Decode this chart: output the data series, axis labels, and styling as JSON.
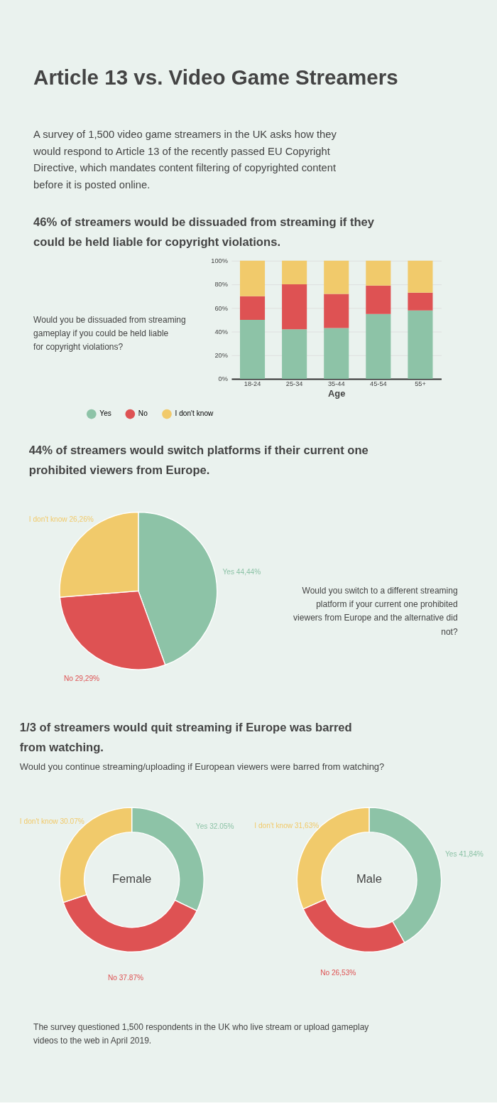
{
  "chart_data": [
    {
      "type": "other",
      "title": "Article 13 vs. Video Game Streamers",
      "subtitle": "A survey of 1,500 video game streamers in the UK asks how they would respond to Article 13 of the recently passed EU Copyright Directive, which mandates content filtering of copyrighted content before it is posted online."
    },
    {
      "type": "bar",
      "title": "46% of streamers would be dissuaded from streaming if they could be held liable for copyright violations.",
      "subtitle": "Would you be dissuaded from streaming gameplay if you could be held liable for copyright violations?",
      "xlabel": "Age",
      "categories": [
        "18-24",
        "25-34",
        "35-44",
        "45-54",
        "55+"
      ],
      "stacked": true,
      "ylim": [
        0,
        100
      ],
      "yticks": [
        {
          "value": 0,
          "label": "0%"
        },
        {
          "value": 20,
          "label": "20%"
        },
        {
          "value": 40,
          "label": "40%"
        },
        {
          "value": 60,
          "label": "60%"
        },
        {
          "value": 80,
          "label": "80%"
        },
        {
          "value": 100,
          "label": "100%"
        }
      ],
      "grid": "y",
      "legend": "bottom",
      "series": [
        {
          "name": "Yes",
          "color": "#8dc3a7",
          "values": [
            50,
            42,
            43,
            55,
            58
          ]
        },
        {
          "name": "No",
          "color": "#de5253",
          "values": [
            20,
            38,
            29,
            24,
            15
          ]
        },
        {
          "name": "I don't know",
          "color": "#f1ca6b",
          "values": [
            30,
            20,
            28,
            21,
            27
          ]
        }
      ]
    },
    {
      "type": "pie",
      "title": "44% of streamers would switch platforms if their current one prohibited viewers from Europe.",
      "subtitle": "Would you switch to a different streaming platform if your current one prohibited viewers from Europe and the alternative did not?",
      "categories": [
        "Yes",
        "No",
        "I don't know"
      ],
      "values": [
        44.44,
        29.29,
        26.26
      ],
      "value_labels": [
        "44,44%",
        "29,29%",
        "26,26%"
      ],
      "colors": [
        "#8dc3a7",
        "#de5253",
        "#f1ca6b"
      ]
    },
    {
      "type": "donut",
      "title": "1/3 of streamers would quit streaming if Europe was barred from watching.",
      "subtitle": "Would you continue streaming/uploading if European viewers were barred from watching?",
      "annotations": [
        "Female"
      ],
      "categories": [
        "Yes",
        "No",
        "I don't know"
      ],
      "values": [
        32.05,
        37.87,
        30.07
      ],
      "value_labels": [
        "32.05%",
        "37.87%",
        "30.07%"
      ],
      "colors": [
        "#8dc3a7",
        "#de5253",
        "#f1ca6b"
      ]
    },
    {
      "type": "donut",
      "annotations": [
        "Male"
      ],
      "categories": [
        "Yes",
        "No",
        "I don't know"
      ],
      "values": [
        41.84,
        26.53,
        31.63
      ],
      "value_labels": [
        "41,84%",
        "26,53%",
        "31,63%"
      ],
      "colors": [
        "#8dc3a7",
        "#de5253",
        "#f1ca6b"
      ]
    },
    {
      "type": "other",
      "annotations": [
        "The survey questioned 1,500 respondents in the UK who live stream or upload gameplay videos to the web in April 2019."
      ]
    }
  ]
}
